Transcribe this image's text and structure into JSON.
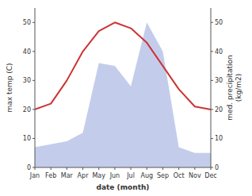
{
  "chart_data": {
    "type": "combo",
    "xlabel": "date (month)",
    "ylabel": "max temp (C)",
    "y2label": "med. precipitation\n(kg/m2)",
    "categories": [
      "Jan",
      "Feb",
      "Mar",
      "Apr",
      "May",
      "Jun",
      "Jul",
      "Aug",
      "Sep",
      "Oct",
      "Nov",
      "Dec"
    ],
    "series": [
      {
        "type": "area",
        "color": "#b8c4e8",
        "values": [
          7,
          8,
          9,
          12,
          36,
          35,
          28,
          50,
          40,
          7,
          5,
          5
        ]
      },
      {
        "type": "line",
        "color": "#cc3333",
        "axis": "y2",
        "values": [
          20,
          22,
          30,
          40,
          47,
          50,
          48,
          43,
          35,
          27,
          21,
          20
        ]
      }
    ],
    "ylim": [
      0,
      55
    ],
    "yticks": [
      0,
      10,
      20,
      30,
      40,
      50
    ],
    "y2lim": [
      0,
      55
    ],
    "y2ticks": [
      0,
      10,
      20,
      30,
      40,
      50
    ]
  }
}
